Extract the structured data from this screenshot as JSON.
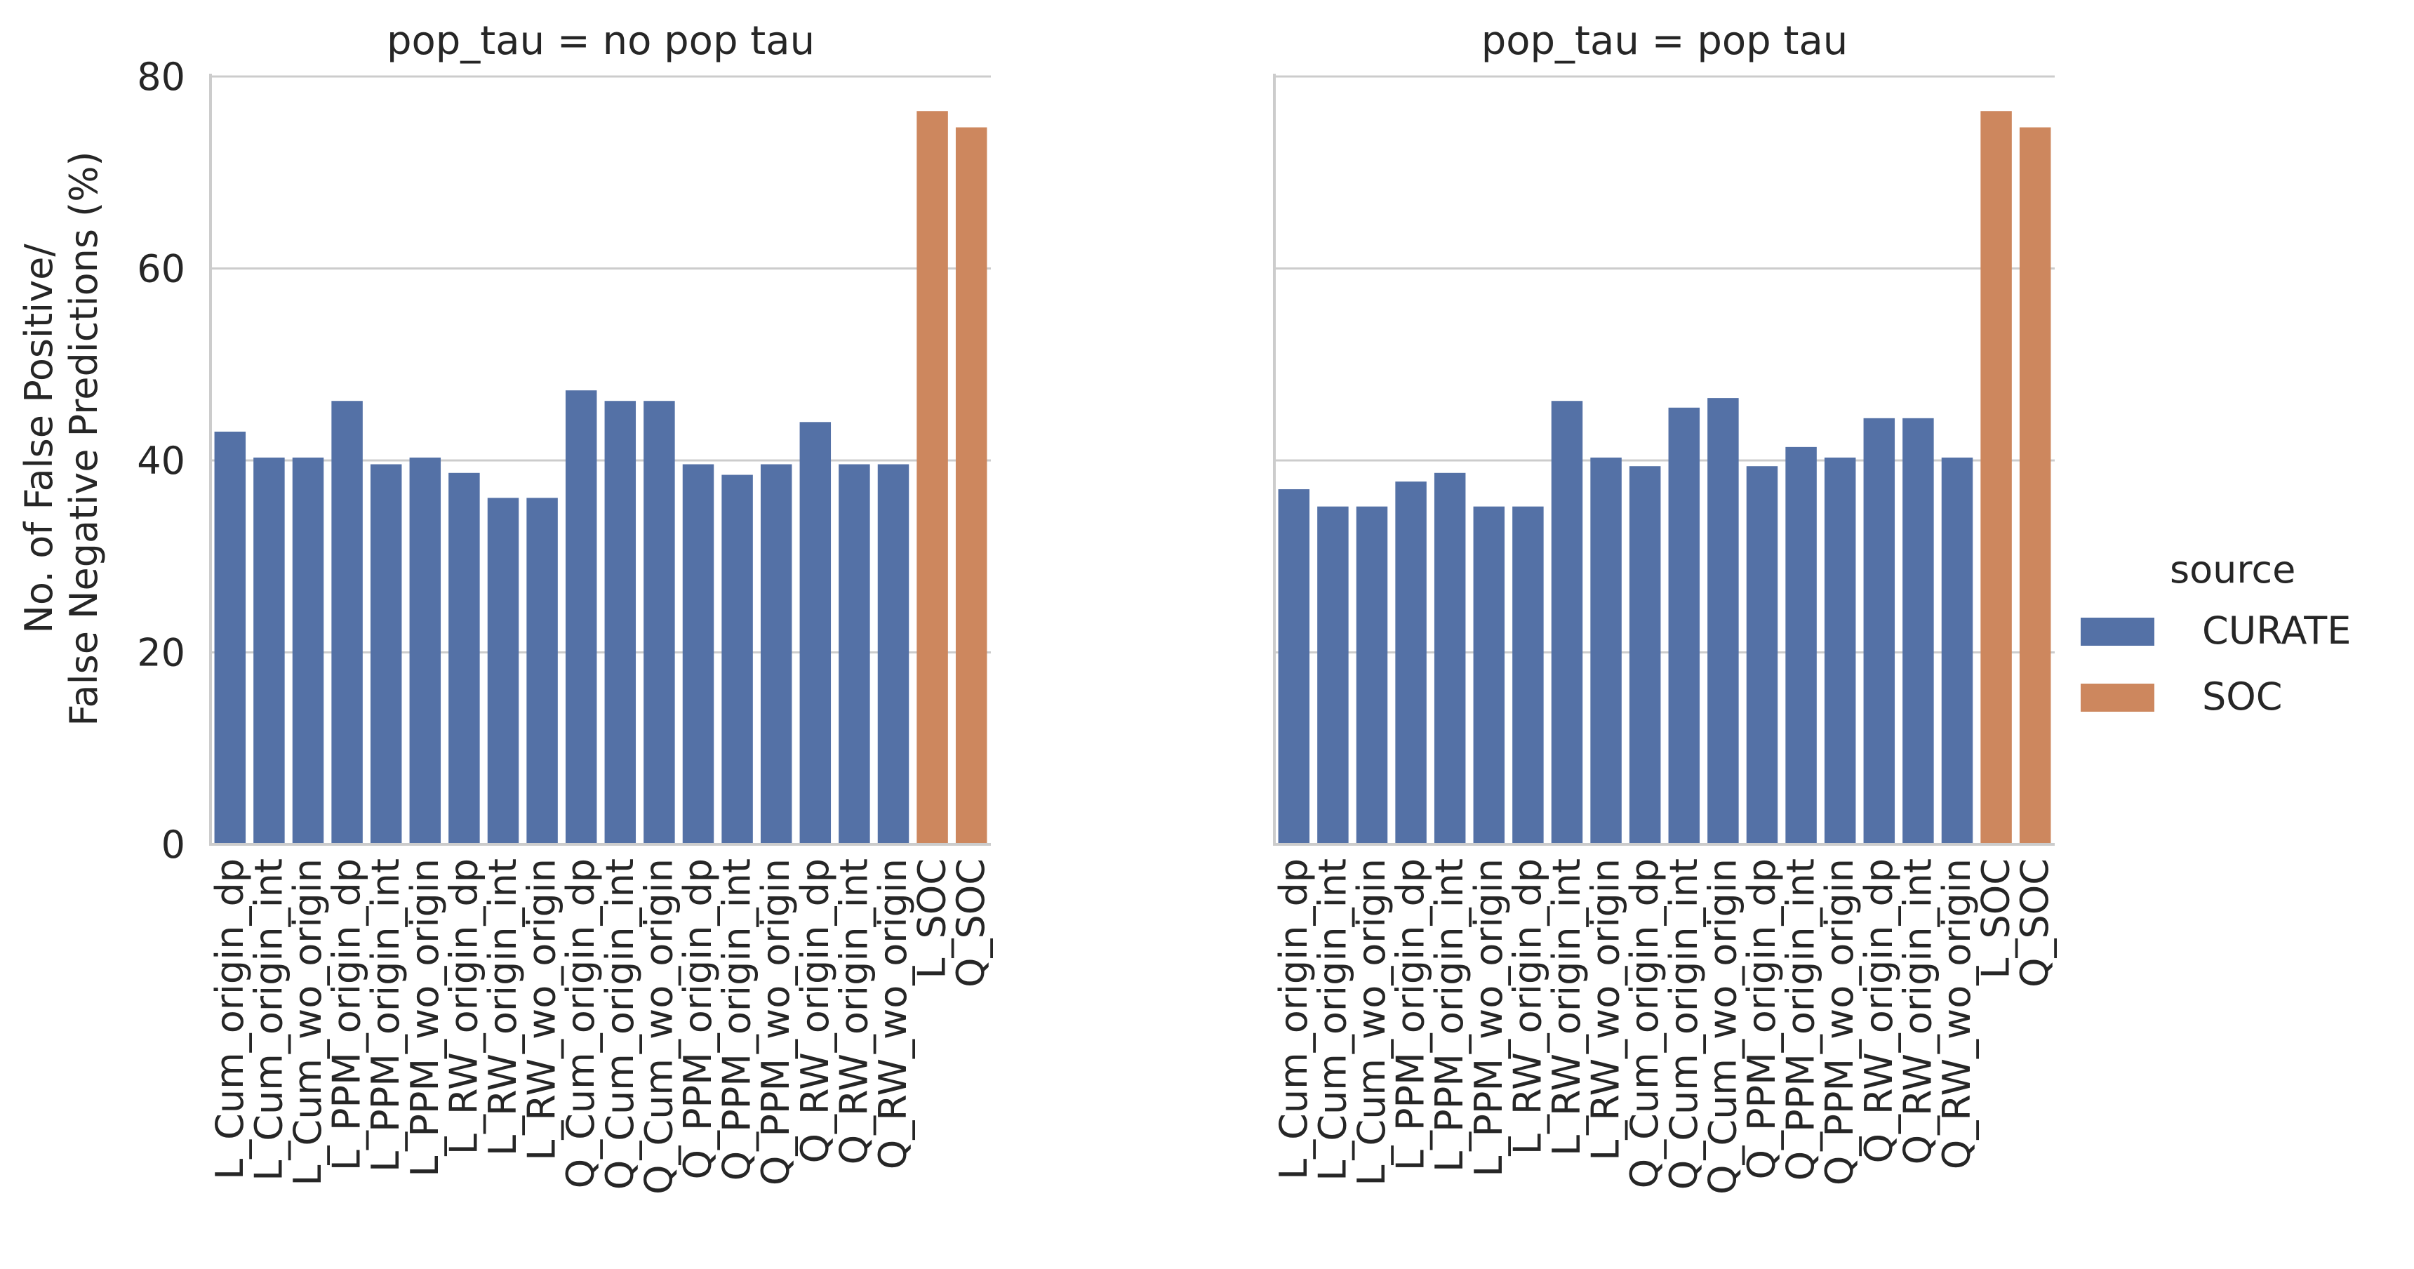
{
  "figure": {
    "ylabel_lines": [
      "No. of False Positive/",
      "False Negative Predictions (%)"
    ],
    "legend": {
      "title": "source",
      "entries": [
        {
          "name": "CURATE",
          "color": "#5471a6"
        },
        {
          "name": "SOC",
          "color": "#cd875e"
        }
      ]
    }
  },
  "chart_data": [
    {
      "type": "bar",
      "title": "pop_tau = no pop tau",
      "ylim": [
        0,
        80
      ],
      "yticks": [
        0,
        20,
        40,
        60,
        80
      ],
      "grid": "horizontal",
      "legend_placement": "right",
      "categories": [
        "L_Cum_origin_dp",
        "L_Cum_origin_int",
        "L_Cum_wo_origin",
        "L_PPM_origin_dp",
        "L_PPM_origin_int",
        "L_PPM_wo_origin",
        "L_RW_origin_dp",
        "L_RW_origin_int",
        "L_RW_wo_origin",
        "Q_Cum_origin_dp",
        "Q_Cum_origin_int",
        "Q_Cum_wo_origin",
        "Q_PPM_origin_dp",
        "Q_PPM_origin_int",
        "Q_PPM_wo_origin",
        "Q_RW_origin_dp",
        "Q_RW_origin_int",
        "Q_RW_wo_origin",
        "L_SOC",
        "Q_SOC"
      ],
      "values": [
        43.0,
        40.3,
        40.3,
        46.2,
        39.6,
        40.3,
        38.7,
        36.1,
        36.1,
        47.3,
        46.2,
        46.2,
        39.6,
        38.5,
        39.6,
        44.0,
        39.6,
        39.6,
        76.4,
        74.7
      ],
      "source": [
        "CURATE",
        "CURATE",
        "CURATE",
        "CURATE",
        "CURATE",
        "CURATE",
        "CURATE",
        "CURATE",
        "CURATE",
        "CURATE",
        "CURATE",
        "CURATE",
        "CURATE",
        "CURATE",
        "CURATE",
        "CURATE",
        "CURATE",
        "CURATE",
        "SOC",
        "SOC"
      ]
    },
    {
      "type": "bar",
      "title": "pop_tau = pop tau",
      "ylim": [
        0,
        80
      ],
      "yticks": [
        0,
        20,
        40,
        60,
        80
      ],
      "grid": "horizontal",
      "legend_placement": "right",
      "categories": [
        "L_Cum_origin_dp",
        "L_Cum_origin_int",
        "L_Cum_wo_origin",
        "L_PPM_origin_dp",
        "L_PPM_origin_int",
        "L_PPM_wo_origin",
        "L_RW_origin_dp",
        "L_RW_origin_int",
        "L_RW_wo_origin",
        "Q_Cum_origin_dp",
        "Q_Cum_origin_int",
        "Q_Cum_wo_origin",
        "Q_PPM_origin_dp",
        "Q_PPM_origin_int",
        "Q_PPM_wo_origin",
        "Q_RW_origin_dp",
        "Q_RW_origin_int",
        "Q_RW_wo_origin",
        "L_SOC",
        "Q_SOC"
      ],
      "values": [
        37.0,
        35.2,
        35.2,
        37.8,
        38.7,
        35.2,
        35.2,
        46.2,
        40.3,
        39.4,
        45.5,
        46.5,
        39.4,
        41.4,
        40.3,
        44.4,
        44.4,
        40.3,
        76.4,
        74.7
      ],
      "source": [
        "CURATE",
        "CURATE",
        "CURATE",
        "CURATE",
        "CURATE",
        "CURATE",
        "CURATE",
        "CURATE",
        "CURATE",
        "CURATE",
        "CURATE",
        "CURATE",
        "CURATE",
        "CURATE",
        "CURATE",
        "CURATE",
        "CURATE",
        "CURATE",
        "SOC",
        "SOC"
      ]
    }
  ]
}
